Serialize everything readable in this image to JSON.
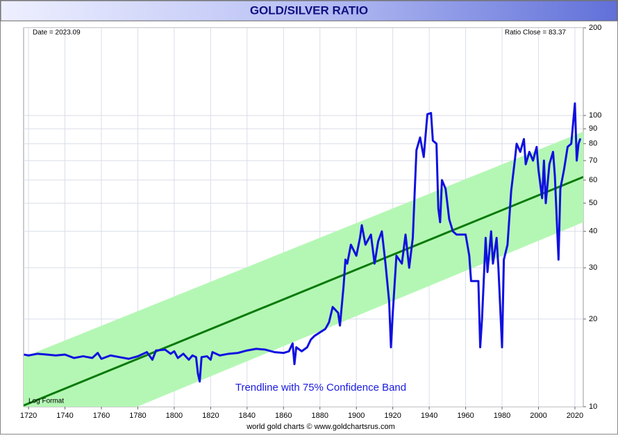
{
  "chart_data": {
    "type": "line",
    "title": "GOLD/SILVER RATIO",
    "date_label": "Date = 2023.09",
    "close_label": "Ratio Close = 83.37",
    "scale_note": "Log Format",
    "band_note": "Trendline with 75% Confidence Band",
    "credit": "world gold charts © www.goldchartsrus.com",
    "yscale": "log",
    "grid": true,
    "xlim": [
      1717.3,
      2024.6
    ],
    "ylim": [
      10,
      200
    ],
    "xticks": [
      1720,
      1740,
      1760,
      1780,
      1800,
      1820,
      1840,
      1860,
      1880,
      1900,
      1920,
      1940,
      1960,
      1980,
      2000,
      2020
    ],
    "yticks": [
      10,
      20,
      30,
      40,
      50,
      60,
      70,
      80,
      90,
      100,
      200
    ],
    "color": "#1010e0",
    "x": [
      1717.5,
      1720,
      1725,
      1730,
      1735,
      1740,
      1745,
      1750,
      1755,
      1758,
      1760,
      1765,
      1770,
      1775,
      1780,
      1785,
      1788,
      1790,
      1795,
      1798,
      1800,
      1802,
      1805,
      1808,
      1810,
      1812,
      1813,
      1814,
      1815,
      1818,
      1820,
      1821,
      1825,
      1830,
      1835,
      1840,
      1845,
      1850,
      1855,
      1860,
      1863,
      1865,
      1866,
      1867,
      1870,
      1873,
      1875,
      1877,
      1880,
      1883,
      1885,
      1887,
      1890,
      1891,
      1893,
      1894,
      1895,
      1897,
      1900,
      1902,
      1903,
      1905,
      1908,
      1910,
      1912,
      1914,
      1916,
      1918,
      1919,
      1920,
      1922,
      1925,
      1927,
      1929,
      1931,
      1932,
      1933,
      1935,
      1937,
      1939,
      1941,
      1942,
      1944,
      1945,
      1946,
      1947,
      1949,
      1951,
      1953,
      1955,
      1960,
      1962,
      1963,
      1967,
      1968,
      1969,
      1971,
      1972,
      1974,
      1975,
      1977,
      1978,
      1980,
      1981,
      1983,
      1985,
      1987,
      1988,
      1990,
      1992,
      1993,
      1995,
      1997,
      1999,
      2000,
      2002,
      2003,
      2004,
      2006,
      2008,
      2009,
      2011,
      2012,
      2014,
      2016,
      2018,
      2020,
      2021,
      2022,
      2023
    ],
    "values": [
      15.1,
      15,
      15.2,
      15.1,
      15,
      15.1,
      14.7,
      14.9,
      14.7,
      15.3,
      14.6,
      15,
      14.8,
      14.6,
      14.9,
      15.4,
      14.5,
      15.6,
      15.7,
      15.2,
      15.5,
      14.7,
      15.2,
      14.5,
      15,
      14.8,
      13,
      12.2,
      14.8,
      14.9,
      14.5,
      15.4,
      15,
      15.2,
      15.3,
      15.6,
      15.8,
      15.7,
      15.4,
      15.3,
      15.5,
      16.5,
      14,
      16,
      15.5,
      16,
      17,
      17.5,
      18,
      18.5,
      19.5,
      22,
      21,
      19,
      26,
      32,
      31,
      36,
      33,
      38,
      42,
      36,
      39,
      31,
      37,
      40,
      31,
      23,
      16,
      21,
      33,
      31,
      39,
      30,
      38,
      54,
      76,
      84,
      72,
      101,
      102,
      82,
      80,
      48,
      43,
      60,
      56,
      44,
      40,
      39,
      39,
      33,
      27,
      27,
      16,
      20,
      38,
      29,
      40,
      31,
      38,
      30,
      16,
      32,
      36,
      55,
      70,
      80,
      75,
      83,
      68,
      75,
      70,
      78,
      65,
      52,
      70,
      50,
      68,
      75,
      62,
      32,
      56,
      65,
      78,
      80,
      110,
      70,
      80,
      83.37
    ],
    "trend": {
      "color": "#0a7a0a",
      "x": [
        1717.3,
        2024.6
      ],
      "values": [
        10.1,
        61.5
      ]
    },
    "band": {
      "color": "#b4f7b4",
      "x": [
        1717.3,
        2024.6
      ],
      "upper": [
        14.8,
        88
      ],
      "lower": [
        6.9,
        43
      ]
    }
  }
}
